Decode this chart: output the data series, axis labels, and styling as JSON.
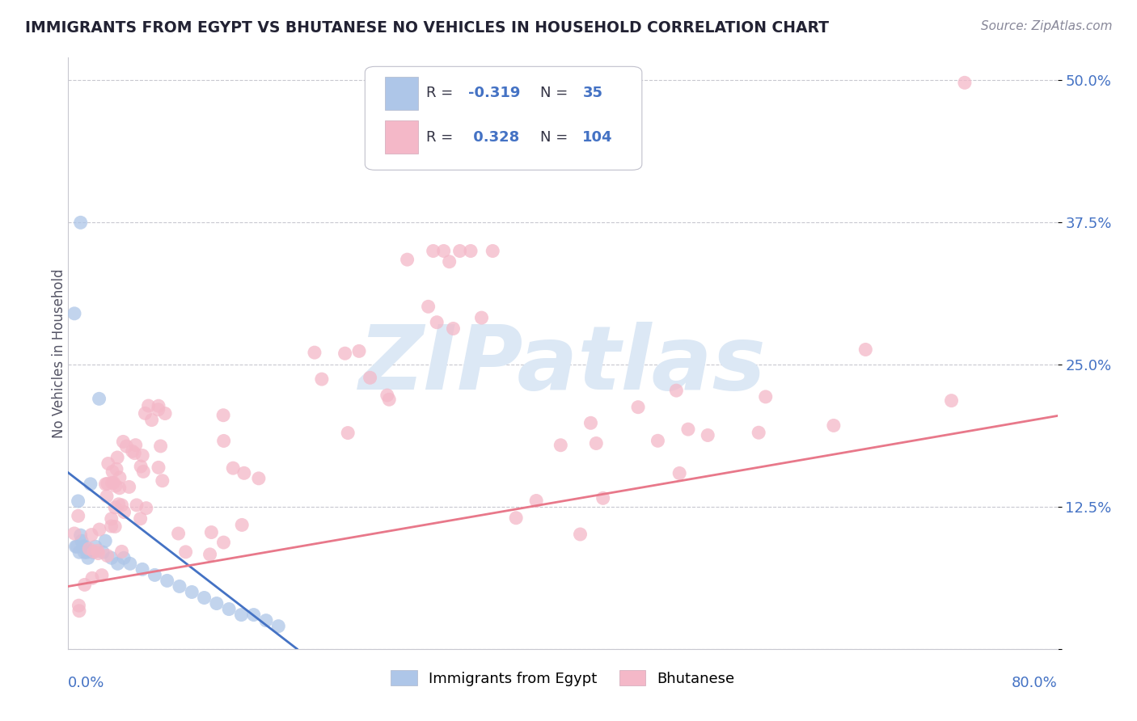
{
  "title": "IMMIGRANTS FROM EGYPT VS BHUTANESE NO VEHICLES IN HOUSEHOLD CORRELATION CHART",
  "source_text": "Source: ZipAtlas.com",
  "ylabel": "No Vehicles in Household",
  "xlim": [
    0.0,
    0.8
  ],
  "ylim": [
    0.0,
    0.52
  ],
  "yticks": [
    0.0,
    0.125,
    0.25,
    0.375,
    0.5
  ],
  "ytick_labels": [
    "",
    "12.5%",
    "25.0%",
    "37.5%",
    "50.0%"
  ],
  "blue_R": -0.319,
  "blue_N": 35,
  "pink_R": 0.328,
  "pink_N": 104,
  "blue_color": "#aec6e8",
  "pink_color": "#f4b8c8",
  "blue_line_color": "#4472c4",
  "pink_line_color": "#e8788a",
  "watermark": "ZIPatlas",
  "watermark_color": "#dce8f5",
  "legend_label_blue": "Immigrants from Egypt",
  "legend_label_pink": "Bhutanese",
  "blue_trend_x0": 0.0,
  "blue_trend_y0": 0.155,
  "blue_trend_x1": 0.185,
  "blue_trend_y1": 0.0,
  "pink_trend_x0": 0.0,
  "pink_trend_y0": 0.055,
  "pink_trend_x1": 0.8,
  "pink_trend_y1": 0.205
}
